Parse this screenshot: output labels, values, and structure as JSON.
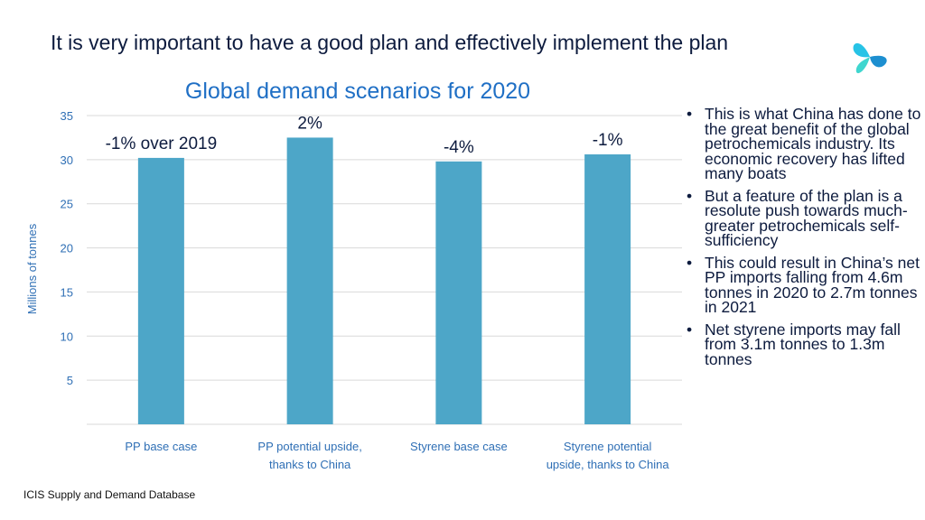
{
  "slide": {
    "headline": "It is very important to have a good plan and effectively implement the plan",
    "logo_icon": "icis-logo-icon",
    "source": "ICIS Supply and Demand Database"
  },
  "bullets": [
    "This is what China has done to the great benefit of the global petrochemicals industry. Its economic recovery has lifted many boats",
    "But a feature of the plan is a resolute push towards much-greater petrochemicals self-sufficiency",
    "This could result in China’s net PP imports falling from 4.6m tonnes in 2020 to 2.7m tonnes in 2021",
    "Net styrene imports may fall from 3.1m tonnes to 1.3m tonnes"
  ],
  "colors": {
    "bar": "#4da6c8",
    "title": "#1f6fc5",
    "axis_text": "#2f6fb5",
    "gridline": "#d9d9d9",
    "text": "#0d1b3e"
  },
  "chart_data": {
    "type": "bar",
    "title": "Global demand scenarios for 2020",
    "xlabel": "",
    "ylabel": "Millions of tonnes",
    "ylim": [
      0,
      35
    ],
    "yticks": [
      5,
      10,
      15,
      20,
      25,
      30,
      35
    ],
    "grid": true,
    "categories": [
      [
        "PP base case"
      ],
      [
        "PP potential upside,",
        "thanks to China"
      ],
      [
        "Styrene base case"
      ],
      [
        "Styrene potential",
        "upside, thanks to China"
      ]
    ],
    "values": [
      30.2,
      32.5,
      29.8,
      30.6
    ],
    "data_labels": [
      "-1% over 2019",
      "2%",
      "-4%",
      "-1%"
    ]
  }
}
